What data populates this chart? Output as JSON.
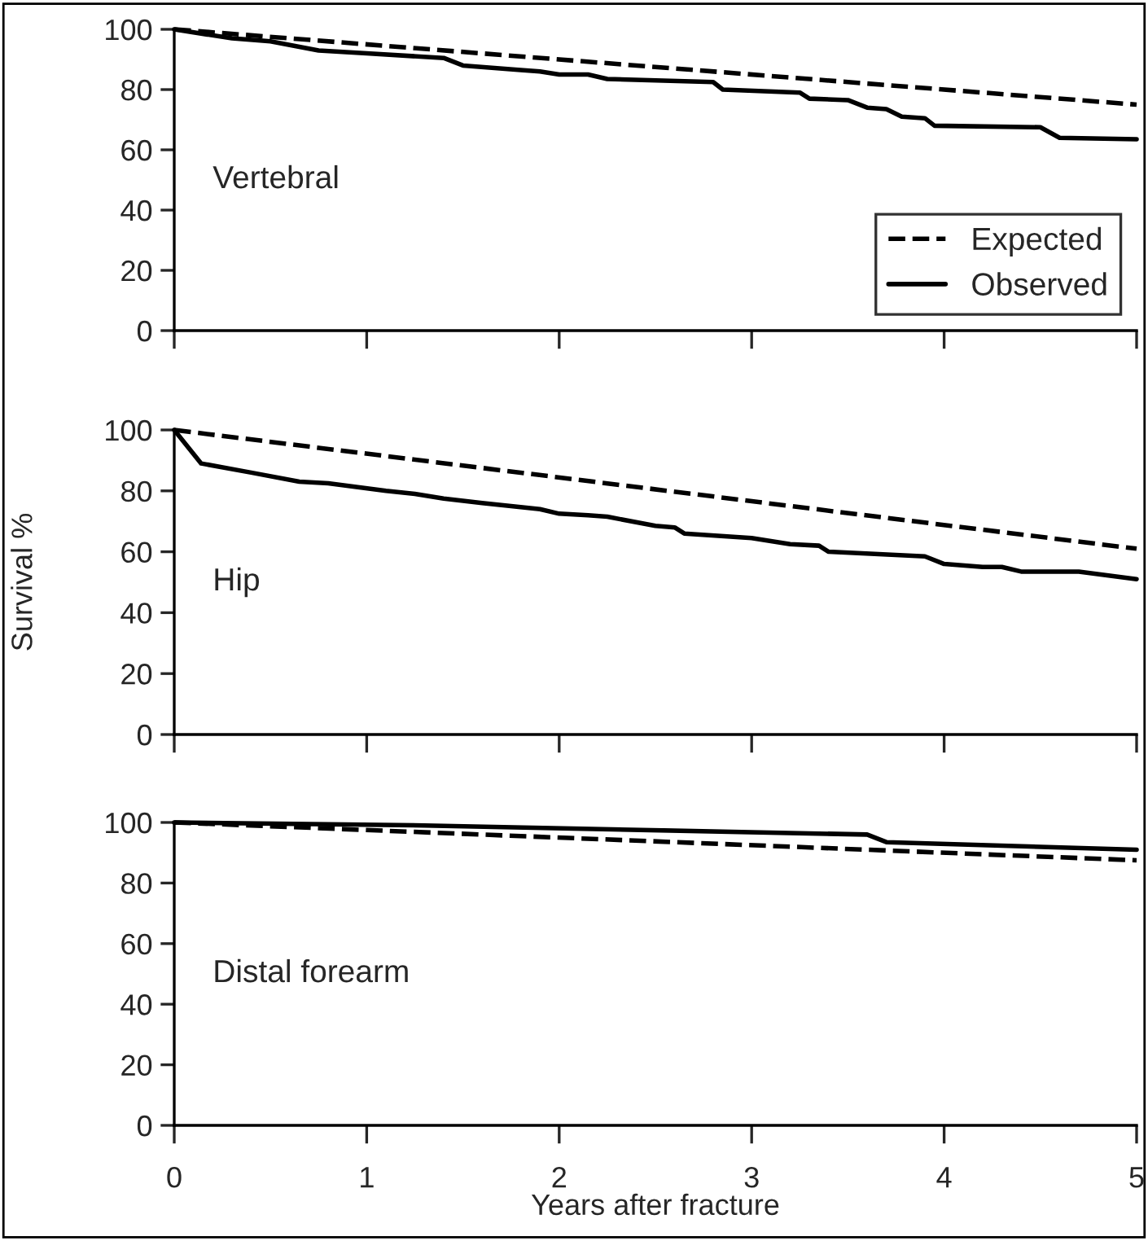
{
  "chart_data": [
    {
      "type": "line",
      "annotations": [
        "Vertebral"
      ],
      "xlim": [
        0,
        5
      ],
      "xticks": [
        {
          "value": 0,
          "label": null
        },
        {
          "value": 1,
          "label": null
        },
        {
          "value": 2,
          "label": null
        },
        {
          "value": 3,
          "label": null
        },
        {
          "value": 4,
          "label": null
        },
        {
          "value": 5,
          "label": null
        }
      ],
      "ylim": [
        0,
        100
      ],
      "yticks": [
        0,
        20,
        40,
        60,
        80,
        100
      ],
      "tick_labels": "y",
      "legend": "right",
      "grid": false,
      "series": [
        {
          "name": "Expected",
          "color": "#000000",
          "line_style": "dashed",
          "x": [
            0,
            5
          ],
          "values": [
            100,
            75
          ]
        },
        {
          "name": "Observed",
          "color": "#000000",
          "line_style": "solid",
          "x": [
            0,
            0.3,
            0.5,
            0.75,
            1,
            1.4,
            1.5,
            1.8,
            1.9,
            2,
            2.15,
            2.25,
            2.8,
            2.85,
            3.25,
            3.3,
            3.5,
            3.6,
            3.7,
            3.78,
            3.9,
            3.95,
            4.5,
            4.6,
            5
          ],
          "values": [
            100,
            97,
            96,
            93,
            92,
            90.5,
            88,
            86.5,
            86,
            85,
            85,
            83.5,
            82.5,
            80,
            79,
            77,
            76.5,
            74,
            73.5,
            71,
            70.5,
            68,
            67.5,
            64,
            63.5
          ]
        }
      ]
    },
    {
      "type": "line",
      "annotations": [
        "Hip"
      ],
      "ylabel": "Survival %",
      "xlim": [
        0,
        5
      ],
      "xticks": [
        {
          "value": 0,
          "label": null
        },
        {
          "value": 1,
          "label": null
        },
        {
          "value": 2,
          "label": null
        },
        {
          "value": 3,
          "label": null
        },
        {
          "value": 4,
          "label": null
        },
        {
          "value": 5,
          "label": null
        }
      ],
      "ylim": [
        0,
        100
      ],
      "yticks": [
        0,
        20,
        40,
        60,
        80,
        100
      ],
      "tick_labels": "y",
      "grid": false,
      "series": [
        {
          "color": "#000000",
          "line_style": "dashed",
          "x": [
            0,
            5
          ],
          "values": [
            100,
            61
          ]
        },
        {
          "color": "#000000",
          "line_style": "solid",
          "x": [
            0,
            0.14,
            0.4,
            0.65,
            0.8,
            1.1,
            1.25,
            1.4,
            1.6,
            1.9,
            2,
            2.15,
            2.25,
            2.5,
            2.6,
            2.65,
            3,
            3.2,
            3.35,
            3.4,
            3.9,
            4,
            4.2,
            4.3,
            4.4,
            4.7,
            5
          ],
          "values": [
            100,
            89,
            86,
            83,
            82.5,
            80,
            79,
            77.5,
            76,
            74,
            72.5,
            72,
            71.5,
            68.5,
            68,
            66,
            64.5,
            62.5,
            62,
            60,
            58.5,
            56,
            55,
            55,
            53.5,
            53.5,
            51
          ]
        }
      ]
    },
    {
      "type": "line",
      "annotations": [
        "Distal forearm"
      ],
      "xlabel": "Years after fracture",
      "xlim": [
        0,
        5
      ],
      "xticks": [
        0,
        1,
        2,
        3,
        4,
        5
      ],
      "ylim": [
        0,
        100
      ],
      "yticks": [
        0,
        20,
        40,
        60,
        80,
        100
      ],
      "grid": false,
      "series": [
        {
          "color": "#000000",
          "line_style": "dashed",
          "x": [
            0,
            5
          ],
          "values": [
            100,
            87.5
          ]
        },
        {
          "color": "#000000",
          "line_style": "solid",
          "x": [
            0,
            1.3,
            3.6,
            3.7,
            5
          ],
          "values": [
            100,
            99,
            96,
            93.5,
            91
          ]
        }
      ]
    }
  ]
}
